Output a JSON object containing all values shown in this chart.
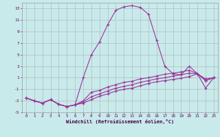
{
  "xlabel": "Windchill (Refroidissement éolien,°C)",
  "bg_color": "#c8eaea",
  "grid_color": "#b0b0b8",
  "line_color": "#993399",
  "xlim": [
    -0.5,
    23.5
  ],
  "ylim": [
    -5,
    14
  ],
  "xticks": [
    0,
    1,
    2,
    3,
    4,
    5,
    6,
    7,
    8,
    9,
    10,
    11,
    12,
    13,
    14,
    15,
    16,
    17,
    18,
    19,
    20,
    21,
    22,
    23
  ],
  "yticks": [
    -5,
    -3,
    -1,
    1,
    3,
    5,
    7,
    9,
    11,
    13
  ],
  "series": [
    [
      -2.5,
      -3.0,
      -3.4,
      -2.8,
      -3.6,
      -4.0,
      -3.7,
      1.0,
      5.0,
      7.2,
      10.2,
      12.7,
      13.3,
      13.5,
      13.2,
      12.0,
      7.5,
      3.0,
      1.7,
      1.5,
      3.0,
      1.7,
      -0.8,
      1.0
    ],
    [
      -2.5,
      -3.0,
      -3.4,
      -2.8,
      -3.6,
      -4.0,
      -3.7,
      -3.0,
      -1.5,
      -1.2,
      -0.6,
      -0.2,
      0.2,
      0.4,
      0.8,
      1.0,
      1.3,
      1.6,
      1.8,
      2.0,
      2.3,
      1.7,
      0.8,
      1.0
    ],
    [
      -2.5,
      -3.0,
      -3.4,
      -2.8,
      -3.6,
      -4.0,
      -3.7,
      -3.2,
      -2.3,
      -1.8,
      -1.3,
      -0.8,
      -0.5,
      -0.2,
      0.2,
      0.5,
      0.8,
      1.0,
      1.3,
      1.5,
      1.8,
      1.7,
      0.5,
      1.0
    ],
    [
      -2.5,
      -3.0,
      -3.4,
      -2.8,
      -3.6,
      -4.0,
      -3.7,
      -3.4,
      -2.8,
      -2.2,
      -1.8,
      -1.3,
      -1.0,
      -0.8,
      -0.4,
      -0.0,
      0.3,
      0.5,
      0.7,
      0.9,
      1.2,
      1.7,
      0.5,
      1.0
    ]
  ]
}
